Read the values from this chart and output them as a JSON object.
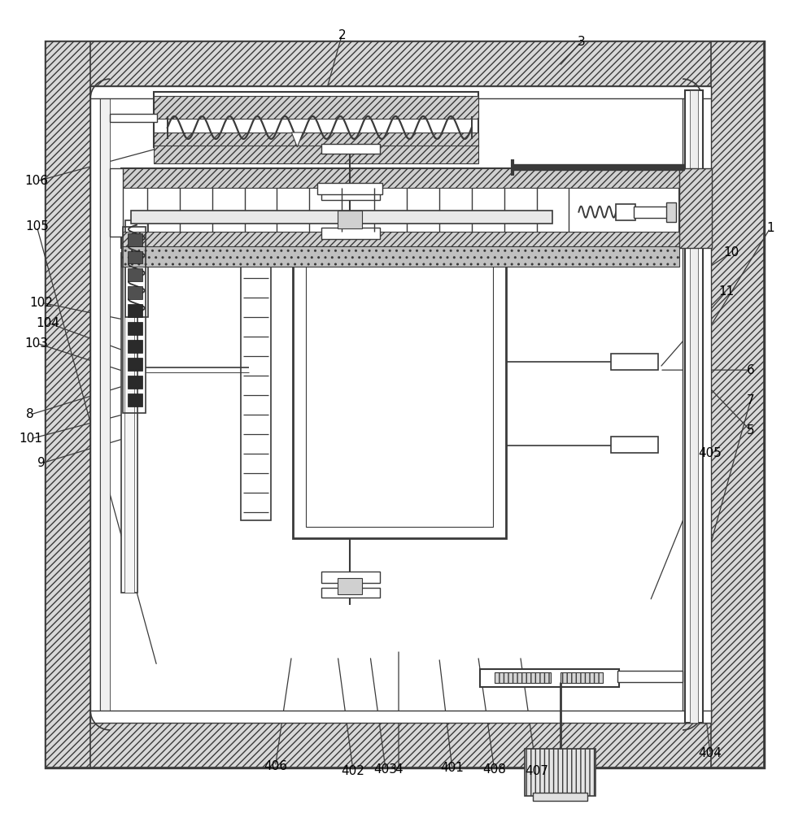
{
  "bg": "#ffffff",
  "lc": "#3a3a3a",
  "fw": 9.92,
  "fh": 10.0,
  "dpi": 100
}
